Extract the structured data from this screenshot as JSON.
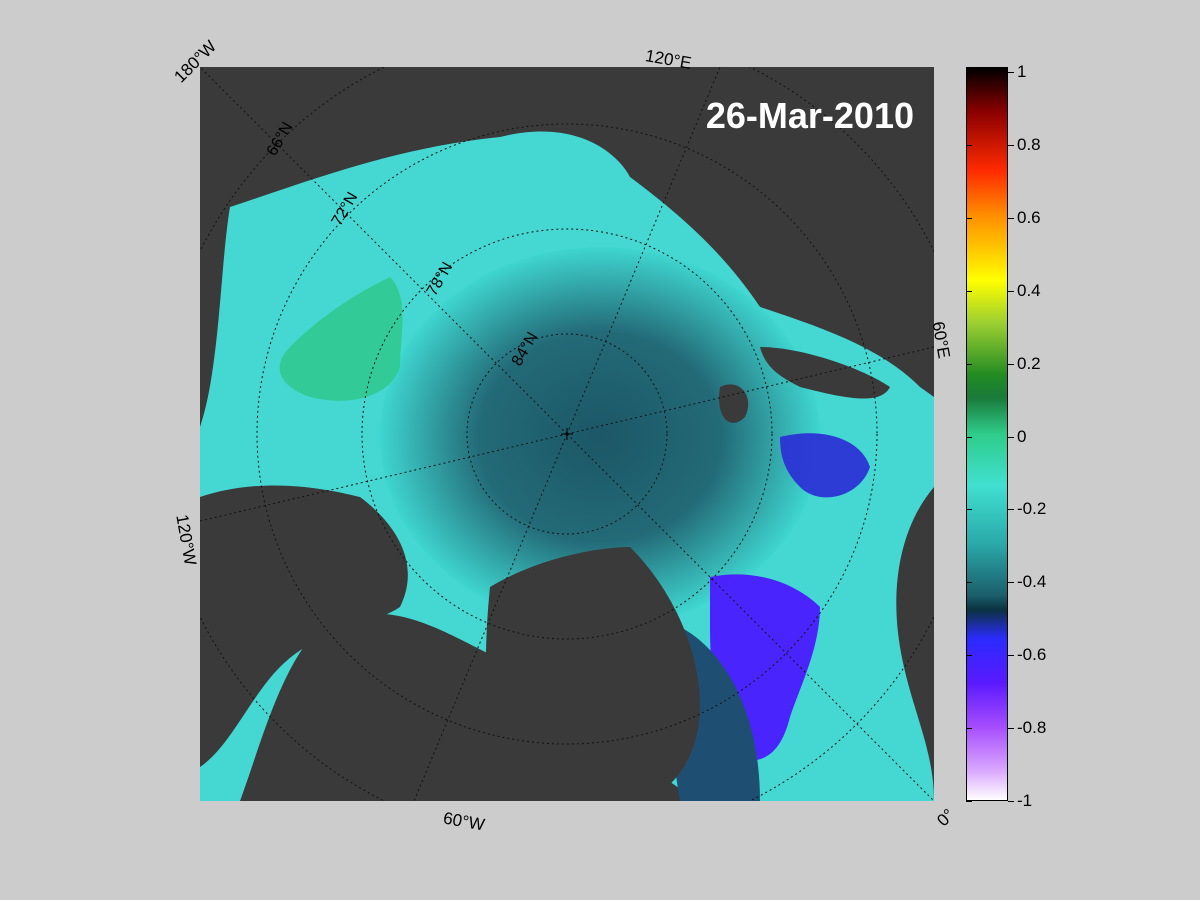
{
  "date": "26-Mar-2010",
  "longitude_labels": {
    "lon_180w": "180°W",
    "lon_120e": "120°E",
    "lon_60e": "60°E",
    "lon_120w": "120°W",
    "lon_60w": "60°W",
    "lon_0": "0°"
  },
  "latitude_labels": [
    "66°N",
    "72°N",
    "78°N",
    "84°N"
  ],
  "colorbar": {
    "min": -1,
    "max": 1,
    "ticks": [
      "1",
      "0.8",
      "0.6",
      "0.4",
      "0.2",
      "0",
      "-0.2",
      "-0.4",
      "-0.6",
      "-0.8",
      "-1"
    ]
  },
  "colors": {
    "background": "#cccccc",
    "land": "#3a3a3a",
    "ocean_low": "#0b1f8f",
    "ocean_mid": "#1b5f6b",
    "ocean_high": "#40e0d0",
    "anomaly_positive": "#2ecc8a"
  }
}
